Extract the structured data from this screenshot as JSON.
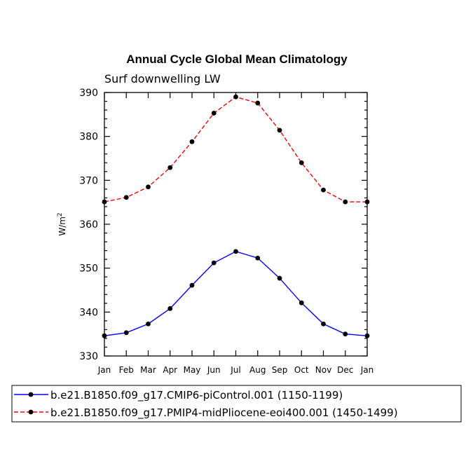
{
  "chart_data": {
    "type": "line",
    "title": "Annual Cycle Global Mean Climatology",
    "subtitle": "Surf downwelling LW",
    "ylabel": "W/m",
    "ylabel_sup": "2",
    "xlabel": "",
    "ylim": [
      330,
      390
    ],
    "yticks": [
      "330",
      "340",
      "350",
      "360",
      "370",
      "380",
      "390"
    ],
    "categories": [
      "Jan",
      "Feb",
      "Mar",
      "Apr",
      "May",
      "Jun",
      "Jul",
      "Aug",
      "Sep",
      "Oct",
      "Nov",
      "Dec",
      "Jan"
    ],
    "grid": false,
    "legend_position": "bottom",
    "series": [
      {
        "name": "b.e21.B1850.f09_g17.CMIP6-piControl.001 (1150-1199)",
        "color": "#0000ff",
        "dash": "solid",
        "values": [
          334.6,
          335.3,
          337.3,
          340.8,
          346.1,
          351.2,
          353.8,
          352.3,
          347.7,
          342.1,
          337.3,
          335.0,
          334.6
        ]
      },
      {
        "name": "b.e21.B1850.f09_g17.PMIP4-midPliocene-eoi400.001 (1450-1499)",
        "color": "#ff0000",
        "dash": "dashed",
        "values": [
          365.1,
          366.1,
          368.5,
          372.9,
          378.8,
          385.3,
          389.0,
          387.6,
          381.4,
          374.0,
          367.8,
          365.1,
          365.1
        ]
      }
    ]
  }
}
